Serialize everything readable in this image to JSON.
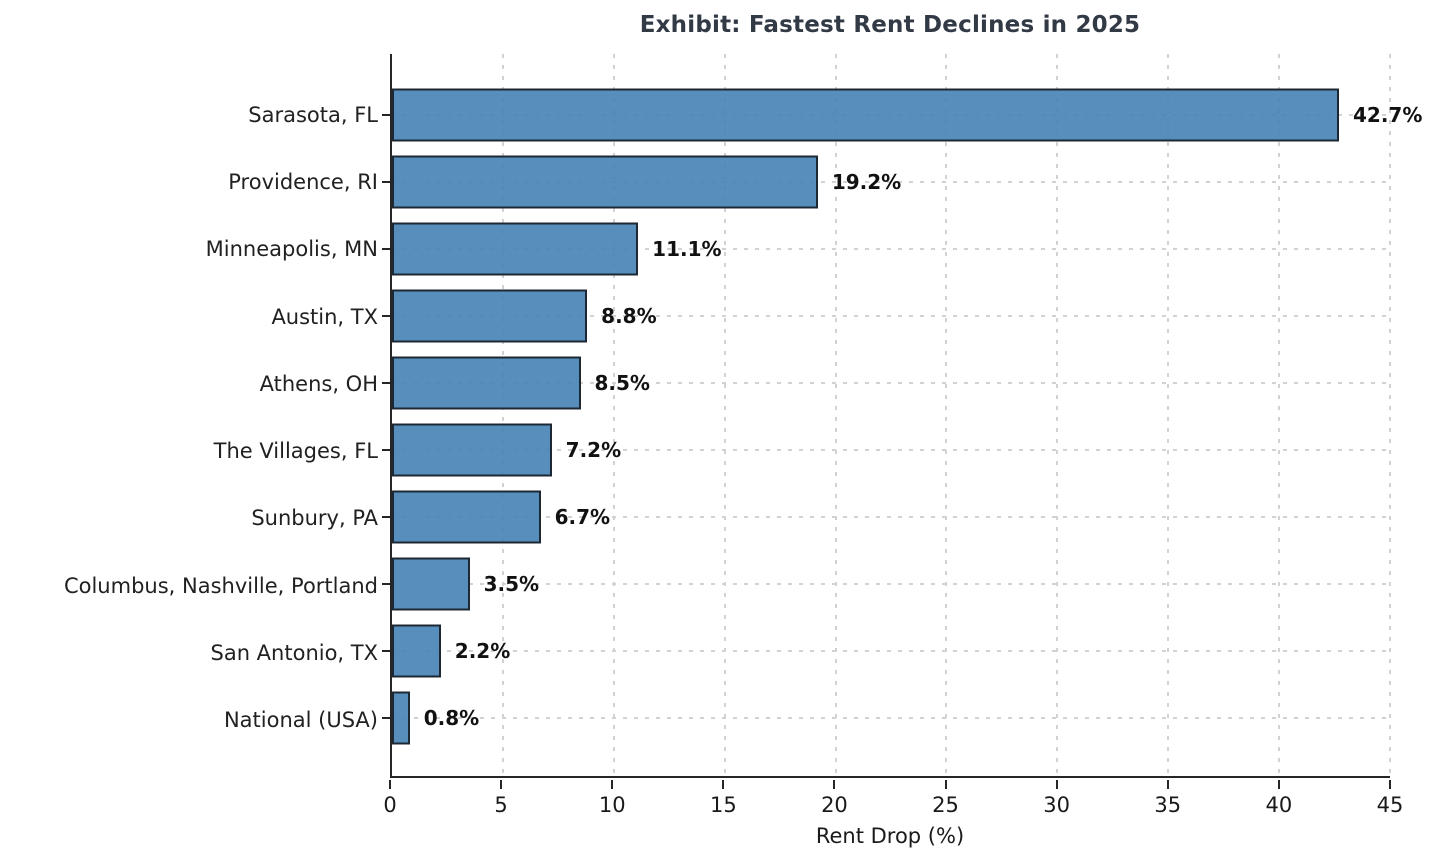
{
  "chart_data": {
    "type": "bar",
    "orientation": "horizontal",
    "title": "Exhibit: Fastest Rent Declines in 2025",
    "xlabel": "Rent Drop (%)",
    "ylabel": "",
    "categories": [
      "Sarasota, FL",
      "Providence, RI",
      "Minneapolis, MN",
      "Austin, TX",
      "Athens, OH",
      "The Villages, FL",
      "Sunbury, PA",
      "Columbus, Nashville, Portland",
      "San Antonio, TX",
      "National (USA)"
    ],
    "values": [
      42.7,
      19.2,
      11.1,
      8.8,
      8.5,
      7.2,
      6.7,
      3.5,
      2.2,
      0.8
    ],
    "value_labels": [
      "42.7%",
      "19.2%",
      "11.1%",
      "8.8%",
      "8.5%",
      "7.2%",
      "6.7%",
      "3.5%",
      "2.2%",
      "0.8%"
    ],
    "xlim": [
      0,
      45
    ],
    "x_ticks": [
      0,
      5,
      10,
      15,
      20,
      25,
      30,
      35,
      40,
      45
    ],
    "grid": "dashed, both axes",
    "legend_position": "none",
    "colors": {
      "bar_fill": "#4682b4",
      "bar_edge": "#1c2833",
      "grid_line": "#d2d2d2",
      "axis_spine": "#262626",
      "title_text": "#323a45",
      "label_text": "#212121"
    }
  }
}
